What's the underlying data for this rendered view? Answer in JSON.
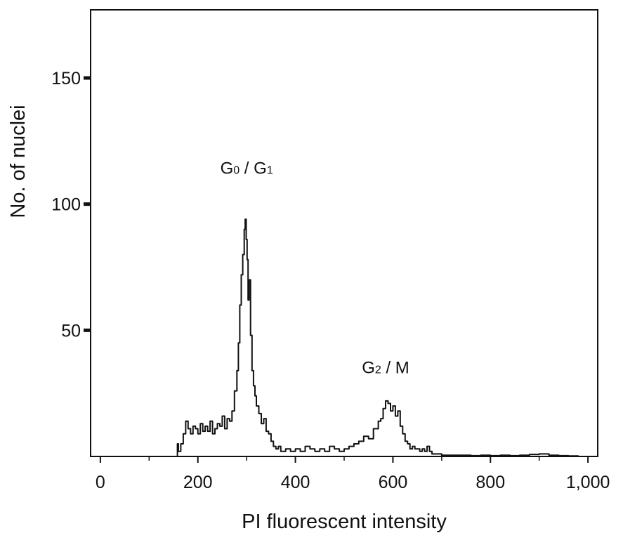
{
  "chart_data": {
    "type": "line",
    "xlabel": "PI  fluorescent  intensity",
    "ylabel": "No.  of  nuclei",
    "xlim": [
      -20,
      1020
    ],
    "ylim": [
      0,
      177
    ],
    "x_ticks": [
      {
        "value": 0,
        "label": "0"
      },
      {
        "value": 200,
        "label": "200"
      },
      {
        "value": 400,
        "label": "400"
      },
      {
        "value": 600,
        "label": "600"
      },
      {
        "value": 800,
        "label": "800"
      },
      {
        "value": 1000,
        "label": "1,000"
      }
    ],
    "x_minor_ticks": [
      100,
      300,
      500,
      700,
      900
    ],
    "y_ticks": [
      {
        "value": 50,
        "label": "50"
      },
      {
        "value": 100,
        "label": "100"
      },
      {
        "value": 150,
        "label": "150"
      }
    ],
    "grid": false,
    "annotations": [
      {
        "main": "G",
        "sub": "0",
        "rest": " / G",
        "sub2": "1",
        "x": 300,
        "y": 112
      },
      {
        "main": "G",
        "sub": "2",
        "rest": " / M",
        "sub2": "",
        "x": 585,
        "y": 33
      }
    ],
    "series": [
      {
        "x": [
          155,
          158,
          160,
          165,
          170,
          175,
          180,
          185,
          190,
          195,
          200,
          205,
          210,
          215,
          220,
          225,
          230,
          235,
          240,
          245,
          250,
          255,
          260,
          265,
          270,
          275,
          280,
          283,
          286,
          289,
          292,
          295,
          297,
          299,
          301,
          303,
          305,
          308,
          311,
          314,
          317,
          320,
          325,
          330,
          335,
          340,
          345,
          350,
          355,
          360,
          365,
          370,
          380,
          390,
          400,
          410,
          420,
          430,
          440,
          450,
          460,
          470,
          480,
          490,
          500,
          510,
          520,
          530,
          540,
          550,
          560,
          570,
          575,
          580,
          585,
          590,
          595,
          600,
          605,
          610,
          615,
          620,
          625,
          630,
          635,
          640,
          645,
          650,
          655,
          660,
          665,
          670,
          675,
          680,
          690,
          700,
          720,
          740,
          760,
          780,
          800,
          820,
          840,
          860,
          880,
          900,
          920,
          940,
          960,
          980
        ],
        "y": [
          0,
          5,
          2,
          5,
          9,
          14,
          11,
          9,
          12,
          11,
          9,
          13,
          10,
          12,
          10,
          14,
          9,
          11,
          13,
          12,
          16,
          11,
          15,
          14,
          18,
          26,
          34,
          45,
          60,
          72,
          80,
          90,
          94,
          86,
          78,
          62,
          70,
          48,
          34,
          28,
          24,
          20,
          17,
          13,
          15,
          10,
          9,
          6,
          4,
          3,
          4,
          2,
          3,
          2,
          3,
          2,
          4,
          3,
          2,
          3,
          2,
          4,
          3,
          2,
          3,
          4,
          5,
          6,
          8,
          7,
          11,
          14,
          15,
          19,
          22,
          21,
          18,
          20,
          16,
          18,
          12,
          9,
          6,
          5,
          3,
          4,
          3,
          3,
          2,
          3,
          2,
          4,
          2,
          1,
          1,
          0.5,
          0.5,
          0.5,
          0.3,
          0.5,
          0.3,
          0.5,
          0.3,
          0.5,
          0.8,
          1,
          0.5,
          0.3,
          0.2,
          0
        ]
      }
    ]
  }
}
